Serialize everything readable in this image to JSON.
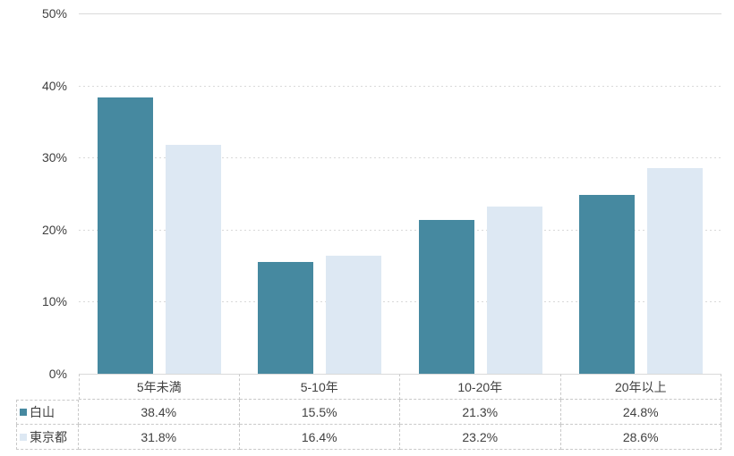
{
  "chart_data": {
    "type": "bar",
    "title": "",
    "categories": [
      "5年未満",
      "5-10年",
      "10-20年",
      "20年以上"
    ],
    "series": [
      {
        "name": "白山",
        "color": "#4689a0",
        "values": [
          38.4,
          15.5,
          21.3,
          24.8
        ]
      },
      {
        "name": "東京都",
        "color": "#dde8f3",
        "values": [
          31.8,
          16.4,
          23.2,
          28.6
        ]
      }
    ],
    "xlabel": "",
    "ylabel": "",
    "ylim": [
      0,
      50
    ],
    "ytick_labels": [
      "0%",
      "10%",
      "20%",
      "30%",
      "40%",
      "50%"
    ],
    "grid": true,
    "gridline_color": "#d9d9d9",
    "legend_position": "data-table-left"
  },
  "data_table": {
    "header": [
      "5年未満",
      "5-10年",
      "10-20年",
      "20年以上"
    ],
    "rows": [
      {
        "label": "白山",
        "swatch_color": "#4689a0",
        "values": [
          "38.4%",
          "15.5%",
          "21.3%",
          "24.8%"
        ]
      },
      {
        "label": "東京都",
        "swatch_color": "#dde8f3",
        "values": [
          "31.8%",
          "16.4%",
          "23.2%",
          "28.6%"
        ]
      }
    ]
  },
  "colors": {
    "series_1": "#4689a0",
    "series_2": "#dde8f3",
    "gridline": "#d9d9d9",
    "table_border": "#c9c9c9",
    "text": "#404040",
    "background": "#ffffff"
  }
}
